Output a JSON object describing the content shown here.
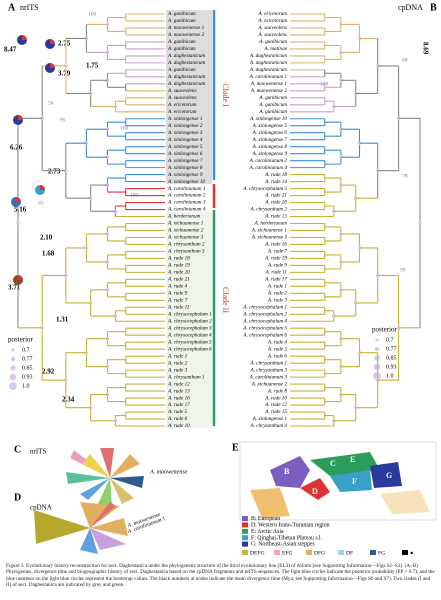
{
  "panel_a": {
    "letter": "A",
    "title": "nrITS",
    "node_ages": [
      "8.47",
      "2.75",
      "3.79",
      "1.75",
      "6.26",
      "2.73",
      "5.16",
      "3.71",
      "2.10",
      "1.68",
      "1.31",
      "2.92",
      "2.34"
    ],
    "support": [
      "100",
      "56",
      "95",
      "100",
      "65",
      "100"
    ],
    "tips": [
      "A. gunibicum",
      "A. gunibicum",
      "A. maowenense 1",
      "A. maowenense 2",
      "A. gunibicum",
      "A. gunibicum",
      "A. daghestanicum",
      "A. daghestanicum",
      "A. gunibicum",
      "A. daghestanicum",
      "A. daghestanicum",
      "A. suaveolens",
      "A. suaveolens",
      "A. ericetorum",
      "A. ericetorum",
      "A. xinlongense 1",
      "A. xinlongense 2",
      "A. xinlongense 3",
      "A. xinlongense 4",
      "A. xinlongense 5",
      "A. xinlongense 6",
      "A. xinlongense 7",
      "A. xinlongense 8",
      "A. xinlongense 9",
      "A. xinlongense 10",
      "A. carolinianum 1",
      "A. carolinianum 2",
      "A. carolinianum 3",
      "A. carolinianum 4",
      "A. herderianum",
      "A. xichuanense 1",
      "A. xichuanense 2",
      "A. xichuanense 3",
      "A. chrysanthum 2",
      "A. chrysanthum 3",
      "A. rude 18",
      "A. rude 19",
      "A. rude 20",
      "A. rude 21",
      "A. rude 4",
      "A. rude 9",
      "A. rude 7",
      "A. rude 11",
      "A. chrysocephalum 1",
      "A. chrysocephalum 2",
      "A. chrysocephalum 3",
      "A. chrysocephalum 4",
      "A. chrysocephalum 5",
      "A. chrysocephalum 6",
      "A. rude 1",
      "A. rude 2",
      "A. rude 3",
      "A. chrysanthum 1",
      "A. rude 12",
      "A. rude 13",
      "A. rude 16",
      "A. rude 17",
      "A. rude 5",
      "A. rude 6",
      "A. rude 10"
    ]
  },
  "panel_b": {
    "letter": "B",
    "title": "cpDNA",
    "node_ages": [
      "8.69"
    ],
    "support": [
      "68",
      "100",
      "78",
      "99"
    ],
    "tips": [
      "A. ericetorum",
      "A. ericetorum",
      "A. suaveolens",
      "A. suaveolens",
      "A. gunibicum",
      "A. matinae",
      "A. daghestanicum",
      "A. daghestanicum",
      "A. daghestanicum",
      "A. carolinianum 1",
      "A. maowenense 1",
      "A. maowenense 2",
      "A. gunibicum",
      "A. gunibicum",
      "A. gunibicum",
      "A. xinlongense 10",
      "A. xinlongense 5",
      "A. xinlongense 6",
      "A. xinlongense 7",
      "A. xinlongense 8",
      "A. xinlongense 9",
      "A. carolinianum 2",
      "A. carolinianum 4",
      "A. rude 18",
      "A. rude 14",
      "A. chrysocephalum 3",
      "A. rude 21",
      "A. rude 20",
      "A. chrysanthum 2",
      "A. rude 13",
      "A. herderianum",
      "A. xichuanense 1",
      "A. xichuanense 3",
      "A. rude 16",
      "A. rude 7",
      "A. rude 19",
      "A. rude 9",
      "A. rude 11",
      "A. rude 17",
      "A. rude 1",
      "A. rude 2",
      "A. rude 3",
      "A. chrysocephalum 1",
      "A. chrysocephalum 2",
      "A. chrysocephalum 4",
      "A. chrysocephalum 5",
      "A. chrysocephalum 6",
      "A. rude 4",
      "A. rude 5",
      "A. rude 6",
      "A. chrysanthum 1",
      "A. chrysanthum 3",
      "A. carolinianum 3",
      "A. xichuanense 2",
      "A. rude 8",
      "A. rude 10",
      "A. rude 12",
      "A. rude 15",
      "A. xinlongense 1",
      "A. chrysanthum 4"
    ]
  },
  "clades": [
    "Clade I",
    "Clade II"
  ],
  "posterior": {
    "title": "posterior",
    "levels": [
      "0.7",
      "0.77",
      "0.85",
      "0.93",
      "1.0"
    ]
  },
  "panel_c": {
    "letter": "C",
    "title": "nrITS",
    "label": "A. maowenense"
  },
  "panel_d": {
    "letter": "D",
    "title": "cpDNA",
    "labels": [
      "A. maowenense",
      "A. carolinianum 1"
    ]
  },
  "panel_e": {
    "letter": "E",
    "regions": [
      "B",
      "C",
      "D",
      "E",
      "F",
      "G"
    ],
    "legend": [
      "B: European",
      "D: Western Irano-Turanian region",
      "E: Arctic Asia",
      "F: Qinghai-Tibetan Plateau s.l.",
      "G: Northeast-Asian steppes"
    ],
    "areas": [
      "DEFG",
      "EFG",
      "DFG",
      "DF",
      "FG",
      "●"
    ]
  },
  "caption": "Figure 3. Evolutionary history reconstruction for sect. Daghestanica under the phylogenetic structure of the third evolutionary line (EL3) of Allium [see Supporting Information—Figs S1–S3]. (A–B) Phylogenies, divergence time and biogeographic history of sect. Daghestanica based on the cpDNA fragments and nrITS sequences. The light blue circles indicate the posterior probability (PP > 0.7), and the blue numbers on the light blue circles represent the bootstrap values. The black numbers at nodes indicate the mean divergence time (Mya; see Supporting Information—Figs S6 and S7). Two clades (I and II) of sect. Daghestanica are indicated by grey and green."
}
